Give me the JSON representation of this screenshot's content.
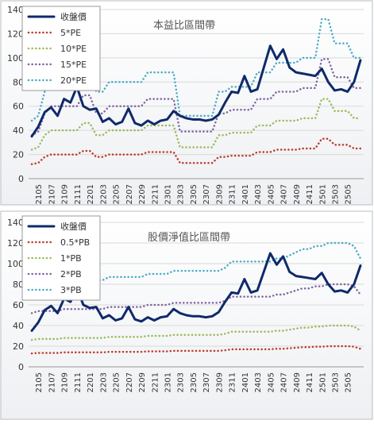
{
  "chart_data": [
    {
      "type": "line",
      "title": "本益比區間帶",
      "categories": [
        null,
        "2105",
        null,
        "2107",
        null,
        "2109",
        null,
        "2111",
        null,
        "2201",
        null,
        "2203",
        null,
        "2205",
        null,
        "2207",
        null,
        "2209",
        null,
        "2211",
        null,
        "2301",
        null,
        "2303",
        null,
        "2305",
        null,
        "2307",
        null,
        "2309",
        null,
        "2311",
        null,
        "2401",
        null,
        "2403",
        null,
        "2405",
        null,
        "2407",
        null,
        "2409",
        null,
        "2411",
        null,
        "2501",
        null,
        "2503",
        null,
        "2505",
        null,
        null
      ],
      "series": [
        {
          "name": "收盤價",
          "color": "#0f2a6b",
          "style": "solid",
          "values": [
            35,
            43,
            55,
            59,
            52,
            66,
            63,
            76,
            60,
            57,
            58,
            47,
            50,
            45,
            47,
            58,
            46,
            44,
            48,
            45,
            48,
            49,
            56,
            52,
            50,
            49,
            49,
            48,
            49,
            53,
            63,
            72,
            71,
            85,
            72,
            74,
            92,
            110,
            99,
            107,
            92,
            88,
            87,
            86,
            85,
            91,
            80,
            73,
            74,
            72,
            80,
            98
          ]
        },
        {
          "name": "5*PE",
          "color": "#c0392b",
          "style": "dotted",
          "values": [
            12,
            13,
            18,
            20,
            20,
            20,
            20,
            20,
            23,
            23,
            18,
            18,
            20,
            20,
            20,
            20,
            20,
            20,
            22,
            22,
            22,
            22,
            22,
            13,
            13,
            13,
            13,
            13,
            13,
            18,
            18,
            19,
            19,
            19,
            19,
            22,
            22,
            22,
            24,
            24,
            24,
            24,
            25,
            25,
            25,
            33,
            33,
            28,
            28,
            28,
            25,
            25
          ]
        },
        {
          "name": "10*PE",
          "color": "#9bbb59",
          "style": "dotted",
          "values": [
            24,
            26,
            36,
            40,
            40,
            40,
            40,
            40,
            46,
            46,
            36,
            36,
            40,
            40,
            40,
            40,
            40,
            40,
            44,
            44,
            44,
            44,
            44,
            26,
            26,
            26,
            26,
            26,
            26,
            36,
            36,
            38,
            38,
            38,
            38,
            44,
            44,
            44,
            48,
            48,
            48,
            48,
            50,
            50,
            50,
            66,
            66,
            56,
            56,
            56,
            50,
            50
          ]
        },
        {
          "name": "15*PE",
          "color": "#8064a2",
          "style": "dotted",
          "values": [
            36,
            39,
            54,
            60,
            60,
            60,
            60,
            60,
            69,
            69,
            54,
            54,
            60,
            60,
            60,
            60,
            60,
            60,
            66,
            66,
            66,
            66,
            66,
            39,
            39,
            39,
            39,
            39,
            39,
            54,
            54,
            57,
            57,
            57,
            57,
            66,
            66,
            66,
            72,
            72,
            72,
            72,
            75,
            75,
            75,
            99,
            99,
            84,
            84,
            84,
            75,
            75
          ]
        },
        {
          "name": "20*PE",
          "color": "#4bacc6",
          "style": "dotted",
          "values": [
            48,
            52,
            72,
            80,
            80,
            80,
            80,
            80,
            92,
            92,
            72,
            72,
            80,
            80,
            80,
            80,
            80,
            80,
            88,
            88,
            88,
            88,
            88,
            52,
            52,
            52,
            52,
            52,
            52,
            72,
            72,
            76,
            76,
            76,
            76,
            88,
            88,
            88,
            96,
            96,
            96,
            96,
            100,
            100,
            100,
            132,
            132,
            112,
            112,
            112,
            100,
            100
          ]
        }
      ],
      "ylim": [
        0,
        140
      ],
      "yticks": [
        0,
        20,
        40,
        60,
        80,
        100,
        120,
        140
      ],
      "grid": true,
      "legend": "upper-left"
    },
    {
      "type": "line",
      "title": "股價淨值比區間帶",
      "categories": [
        null,
        "2105",
        null,
        "2107",
        null,
        "2109",
        null,
        "2111",
        null,
        "2201",
        null,
        "2203",
        null,
        "2205",
        null,
        "2207",
        null,
        "2209",
        null,
        "2211",
        null,
        "2301",
        null,
        "2303",
        null,
        "2305",
        null,
        "2307",
        null,
        "2309",
        null,
        "2311",
        null,
        "2401",
        null,
        "2403",
        null,
        "2405",
        null,
        "2407",
        null,
        "2409",
        null,
        "2411",
        null,
        "2501",
        null,
        "2503",
        null,
        "2505",
        null,
        null
      ],
      "series": [
        {
          "name": "收盤價",
          "color": "#0f2a6b",
          "style": "solid",
          "values": [
            35,
            43,
            55,
            59,
            52,
            66,
            63,
            76,
            60,
            57,
            58,
            47,
            50,
            45,
            47,
            58,
            46,
            44,
            48,
            45,
            48,
            49,
            56,
            52,
            50,
            49,
            49,
            48,
            49,
            53,
            63,
            72,
            71,
            85,
            72,
            74,
            92,
            110,
            99,
            107,
            92,
            88,
            87,
            86,
            85,
            91,
            80,
            73,
            74,
            72,
            80,
            98
          ]
        },
        {
          "name": "0.5*PB",
          "color": "#c0392b",
          "style": "dotted",
          "values": [
            13,
            13.5,
            13.5,
            13.5,
            13.5,
            14,
            14,
            14,
            14,
            14,
            14,
            14,
            14.5,
            14.5,
            14.5,
            14.5,
            14.5,
            14.5,
            15,
            15,
            15,
            15,
            15.5,
            15.5,
            15.5,
            15.5,
            15.5,
            15.5,
            15.5,
            15.5,
            16,
            17,
            17,
            17,
            17,
            17,
            17,
            17,
            17.5,
            17.5,
            18,
            18.5,
            19,
            19,
            19.5,
            19.5,
            20,
            20,
            20,
            20,
            19.5,
            17.5
          ]
        },
        {
          "name": "1*PB",
          "color": "#9bbb59",
          "style": "dotted",
          "values": [
            26,
            27,
            27,
            27,
            27,
            28,
            28,
            28,
            28,
            28,
            28,
            28,
            29,
            29,
            29,
            29,
            29,
            29,
            30,
            30,
            30,
            30,
            31,
            31,
            31,
            31,
            31,
            31,
            31,
            31,
            32,
            34,
            34,
            34,
            34,
            34,
            34,
            34,
            35,
            35,
            36,
            37,
            38,
            38,
            39,
            39,
            40,
            40,
            40,
            40,
            39,
            35
          ]
        },
        {
          "name": "2*PB",
          "color": "#8064a2",
          "style": "dotted",
          "values": [
            52,
            54,
            54,
            54,
            54,
            56,
            56,
            56,
            56,
            56,
            56,
            56,
            58,
            58,
            58,
            58,
            58,
            58,
            60,
            60,
            60,
            60,
            62,
            62,
            62,
            62,
            62,
            62,
            62,
            62,
            64,
            68,
            68,
            68,
            68,
            68,
            68,
            68,
            70,
            70,
            72,
            74,
            76,
            76,
            78,
            78,
            80,
            80,
            80,
            80,
            78,
            70
          ]
        },
        {
          "name": "3*PB",
          "color": "#4bacc6",
          "style": "dotted",
          "values": [
            78,
            81,
            81,
            81,
            81,
            84,
            84,
            84,
            84,
            84,
            84,
            84,
            87,
            87,
            87,
            87,
            87,
            87,
            90,
            90,
            90,
            90,
            93,
            93,
            93,
            93,
            93,
            93,
            93,
            93,
            96,
            102,
            102,
            102,
            102,
            102,
            102,
            102,
            105,
            105,
            108,
            111,
            114,
            114,
            117,
            117,
            120,
            120,
            120,
            120,
            117,
            105
          ]
        }
      ],
      "ylim": [
        0,
        140
      ],
      "yticks": [
        0,
        20,
        40,
        60,
        80,
        100,
        120,
        140
      ],
      "grid": true,
      "legend": "upper-left"
    }
  ]
}
